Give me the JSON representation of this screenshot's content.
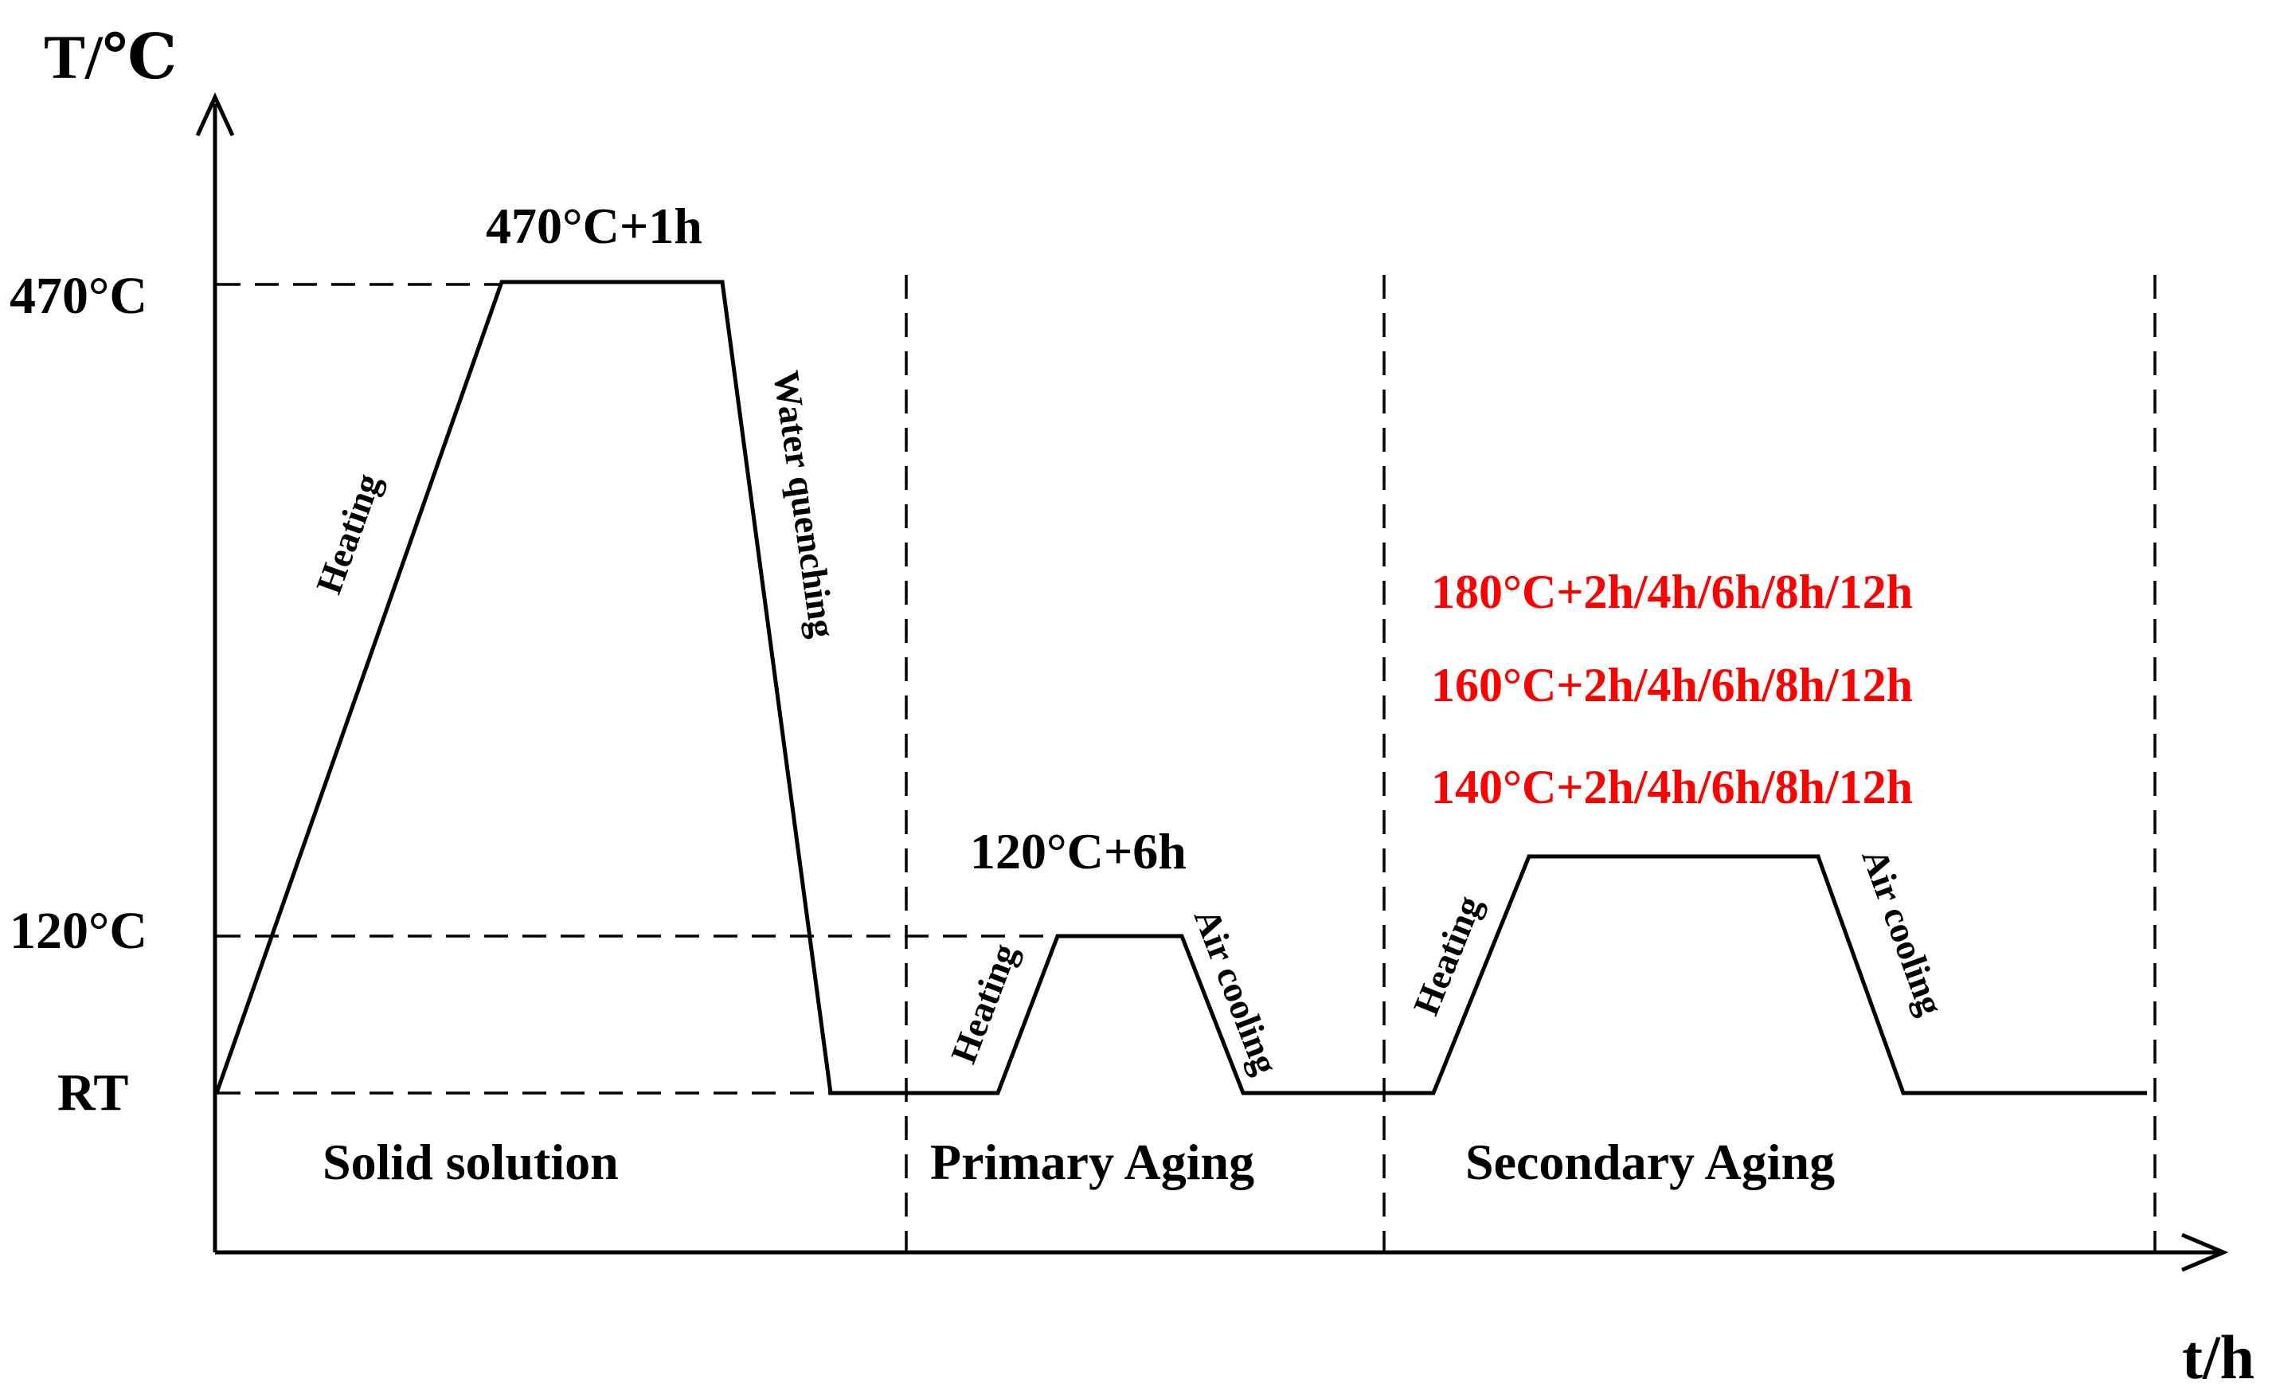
{
  "axes": {
    "y_title": "T/℃",
    "x_title": "t/h"
  },
  "y_levels": {
    "high": "470°C",
    "mid": "120°C",
    "low": "RT"
  },
  "stages": {
    "solid_solution": "Solid solution",
    "primary_aging": "Primary Aging",
    "secondary_aging": "Secondary Aging"
  },
  "conditions": {
    "solution": "470°C+1h",
    "primary": "120°C+6h",
    "secondary": [
      "180°C+2h/4h/6h/8h/12h",
      "160°C+2h/4h/6h/8h/12h",
      "140°C+2h/4h/6h/8h/12h"
    ]
  },
  "ramps": {
    "solution_heating": "Heating",
    "solution_cooling": "Water quenching",
    "primary_heating": "Heating",
    "primary_cooling": "Air cooling",
    "secondary_heating": "Heating",
    "secondary_cooling": "Air cooling"
  },
  "colors": {
    "line": "#000000",
    "highlight": "#ff0000"
  }
}
